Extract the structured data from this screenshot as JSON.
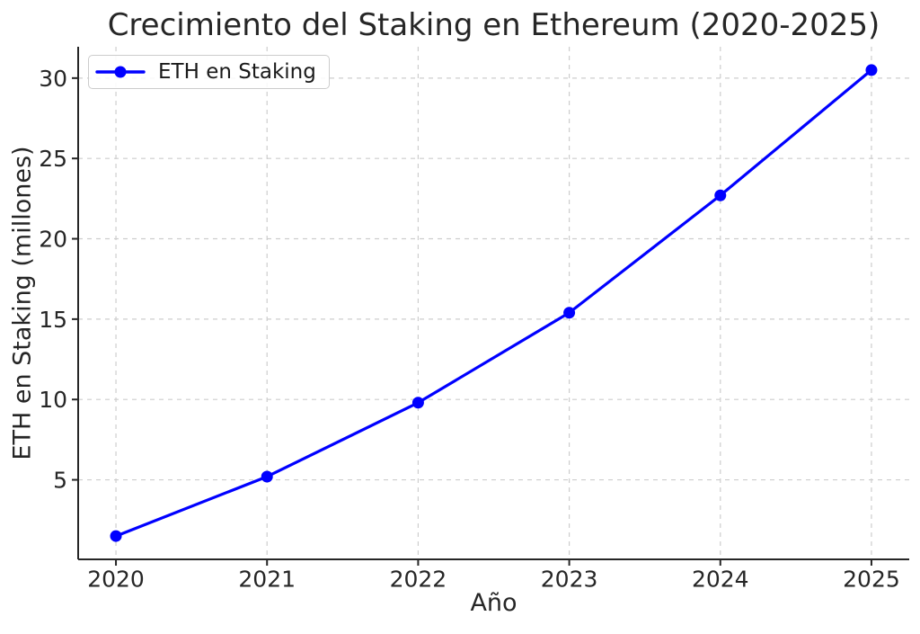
{
  "chart_data": {
    "type": "line",
    "title": "Crecimiento del Staking en Ethereum (2020-2025)",
    "xlabel": "Año",
    "ylabel": "ETH en Staking (millones)",
    "x": [
      2020,
      2021,
      2022,
      2023,
      2024,
      2025
    ],
    "series": [
      {
        "name": "ETH en Staking",
        "values": [
          1.5,
          5.2,
          9.8,
          15.4,
          22.7,
          30.5
        ]
      }
    ],
    "xticks": [
      "2020",
      "2021",
      "2022",
      "2023",
      "2024",
      "2025"
    ],
    "yticks": [
      5,
      10,
      15,
      20,
      25,
      30
    ],
    "xlim": [
      2019.75,
      2025.25
    ],
    "ylim": [
      0.05,
      31.95
    ],
    "grid": true,
    "grid_style": "dashed",
    "legend_position": "upper left",
    "colors": {
      "line": "#0000ff",
      "marker": "#0000ff",
      "grid": "#cdcdcd",
      "spine": "#262626",
      "text": "#262626",
      "legend_border": "#cccccc",
      "background": "#ffffff"
    }
  }
}
